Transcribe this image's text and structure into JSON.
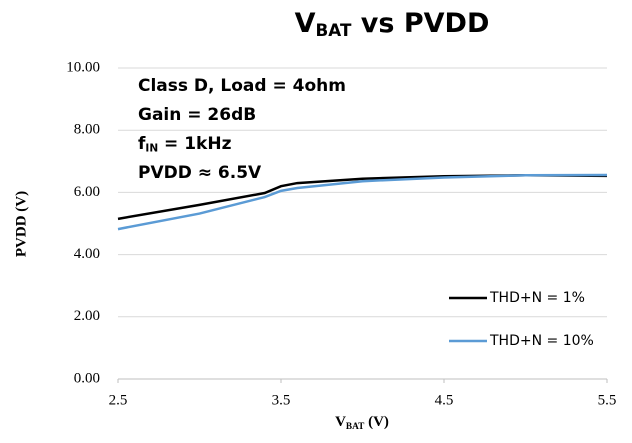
{
  "chart_data": {
    "type": "line",
    "title_parts": [
      "V",
      "BAT",
      " vs PVDD"
    ],
    "x_label_parts": [
      "V",
      "BAT",
      " (V)"
    ],
    "y_label": "PVDD (V)",
    "annotations": [
      [
        "Class D, Load = 4ohm"
      ],
      [
        "Gain = 26dB"
      ],
      [
        "f",
        "IN",
        " = 1kHz"
      ],
      [
        "PVDD ≈ 6.5V"
      ]
    ],
    "x": [
      2.5,
      3.0,
      3.4,
      3.5,
      3.6,
      4.0,
      4.5,
      5.0,
      5.5
    ],
    "series": [
      {
        "name": "THD+N = 1%",
        "color": "#000000",
        "values": [
          5.15,
          5.6,
          5.98,
          6.2,
          6.3,
          6.44,
          6.52,
          6.55,
          6.53
        ]
      },
      {
        "name": "THD+N = 10%",
        "color": "#5b9bd5",
        "values": [
          4.82,
          5.32,
          5.85,
          6.05,
          6.14,
          6.36,
          6.48,
          6.55,
          6.56
        ]
      }
    ],
    "xlim": [
      2.5,
      5.5
    ],
    "xticks": [
      2.5,
      3.5,
      4.5,
      5.5
    ],
    "ylim": [
      0,
      10
    ],
    "yticks": [
      {
        "value": 0,
        "label": "0.00"
      },
      {
        "value": 2,
        "label": "2.00"
      },
      {
        "value": 4,
        "label": "4.00"
      },
      {
        "value": 6,
        "label": "6.00"
      },
      {
        "value": 8,
        "label": "8.00"
      },
      {
        "value": 10,
        "label": "10.00"
      }
    ],
    "grid": true,
    "legend": "lower right"
  }
}
